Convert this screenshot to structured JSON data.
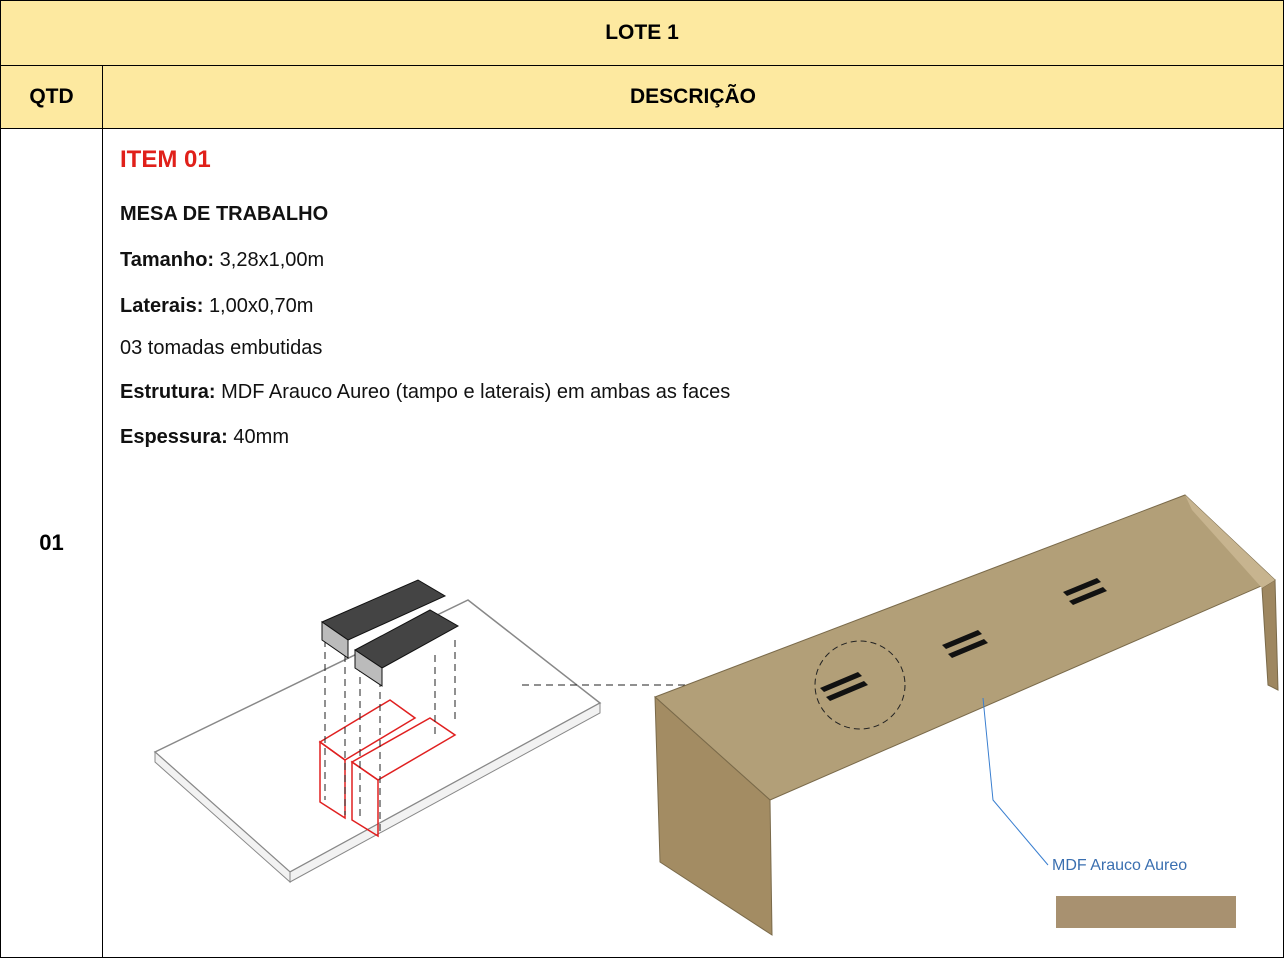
{
  "header": {
    "title": "LOTE 1"
  },
  "table": {
    "columns": [
      "QTD",
      "DESCRIÇÃO"
    ],
    "rows": [
      {
        "qtd": "01",
        "item": "ITEM 01",
        "name": "MESA DE TRABALHO",
        "specs": [
          {
            "label": "Tamanho:",
            "value": "3,28x1,00m"
          },
          {
            "label": "Laterais:",
            "value": "1,00x0,70m"
          },
          {
            "value": "03 tomadas embutidas"
          },
          {
            "label": "Estrutura:",
            "value": "MDF Arauco Aureo (tampo e laterais) em ambas as faces"
          },
          {
            "label": "Espessura:",
            "value": "40mm"
          }
        ],
        "image_label": "MDF Arauco Aureo"
      }
    ]
  }
}
